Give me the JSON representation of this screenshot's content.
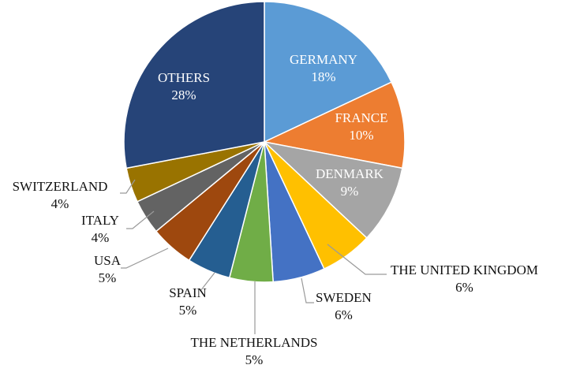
{
  "chart_data": {
    "type": "pie",
    "title": "",
    "start_angle_deg": 0,
    "direction": "clockwise",
    "slices": [
      {
        "label": "GERMANY",
        "value_label": "18%",
        "value": 18,
        "color": "#5B9BD5",
        "label_position": "inside"
      },
      {
        "label": "FRANCE",
        "value_label": "10%",
        "value": 10,
        "color": "#ED7D31",
        "label_position": "inside"
      },
      {
        "label": "DENMARK",
        "value_label": "9%",
        "value": 9,
        "color": "#A5A5A5",
        "label_position": "inside"
      },
      {
        "label": "THE UNITED KINGDOM",
        "value_label": "6%",
        "value": 6,
        "color": "#FFC000",
        "label_position": "outside"
      },
      {
        "label": "SWEDEN",
        "value_label": "6%",
        "value": 6,
        "color": "#4472C4",
        "label_position": "outside"
      },
      {
        "label": "THE NETHERLANDS",
        "value_label": "5%",
        "value": 5,
        "color": "#70AD47",
        "label_position": "outside"
      },
      {
        "label": "SPAIN",
        "value_label": "5%",
        "value": 5,
        "color": "#255E91",
        "label_position": "outside"
      },
      {
        "label": "USA",
        "value_label": "5%",
        "value": 5,
        "color": "#9E480E",
        "label_position": "outside"
      },
      {
        "label": "ITALY",
        "value_label": "4%",
        "value": 4,
        "color": "#636363",
        "label_position": "outside"
      },
      {
        "label": "SWITZERLAND",
        "value_label": "4%",
        "value": 4,
        "color": "#997300",
        "label_position": "outside"
      },
      {
        "label": "OTHERS",
        "value_label": "28%",
        "value": 28,
        "color": "#264478",
        "label_position": "inside"
      }
    ],
    "legend": "none"
  }
}
